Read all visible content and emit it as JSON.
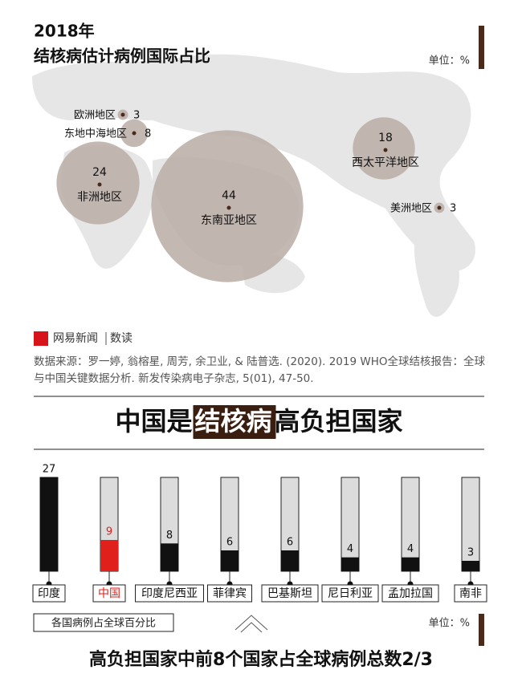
{
  "header": {
    "year": "2018年",
    "title": "结核病估计病例国际占比"
  },
  "brand": {
    "name": "网易新闻",
    "column": "数读"
  },
  "source": "数据来源：罗一婷, 翁榕星, 周芳, 余卫业, & 陆普选. (2020). 2019 WHO全球结核报告：全球与中国关键数据分析. 新发传染病电子杂志, 5(01), 47-50.",
  "heading": {
    "parts": [
      "中国是",
      "结核病",
      "高负担国家"
    ]
  },
  "chart_data": [
    {
      "type": "bubble",
      "unit": "单位：%",
      "color": "#b9aba4",
      "dot_color": "#4a2a1a",
      "categories": [
        "欧洲地区",
        "东地中海地区",
        "非洲地区",
        "东南亚地区",
        "西太平洋地区",
        "美洲地区"
      ],
      "values": [
        3,
        8,
        24,
        44,
        18,
        3
      ]
    },
    {
      "type": "bar",
      "title": "各国病例占全球百分比",
      "unit": "单位：%",
      "ylim": [
        0,
        27
      ],
      "categories": [
        "印度",
        "中国",
        "印度尼西亚",
        "菲律宾",
        "巴基斯坦",
        "尼日利亚",
        "孟加拉国",
        "南非"
      ],
      "values": [
        27,
        9,
        8,
        6,
        6,
        4,
        4,
        3
      ],
      "colors": [
        "#111111",
        "#e0201b",
        "#111111",
        "#111111",
        "#111111",
        "#111111",
        "#111111",
        "#111111"
      ],
      "track_color": "#dcdcdc"
    }
  ],
  "footer": "高负担国家中前8个国家占全球病例总数2/3"
}
